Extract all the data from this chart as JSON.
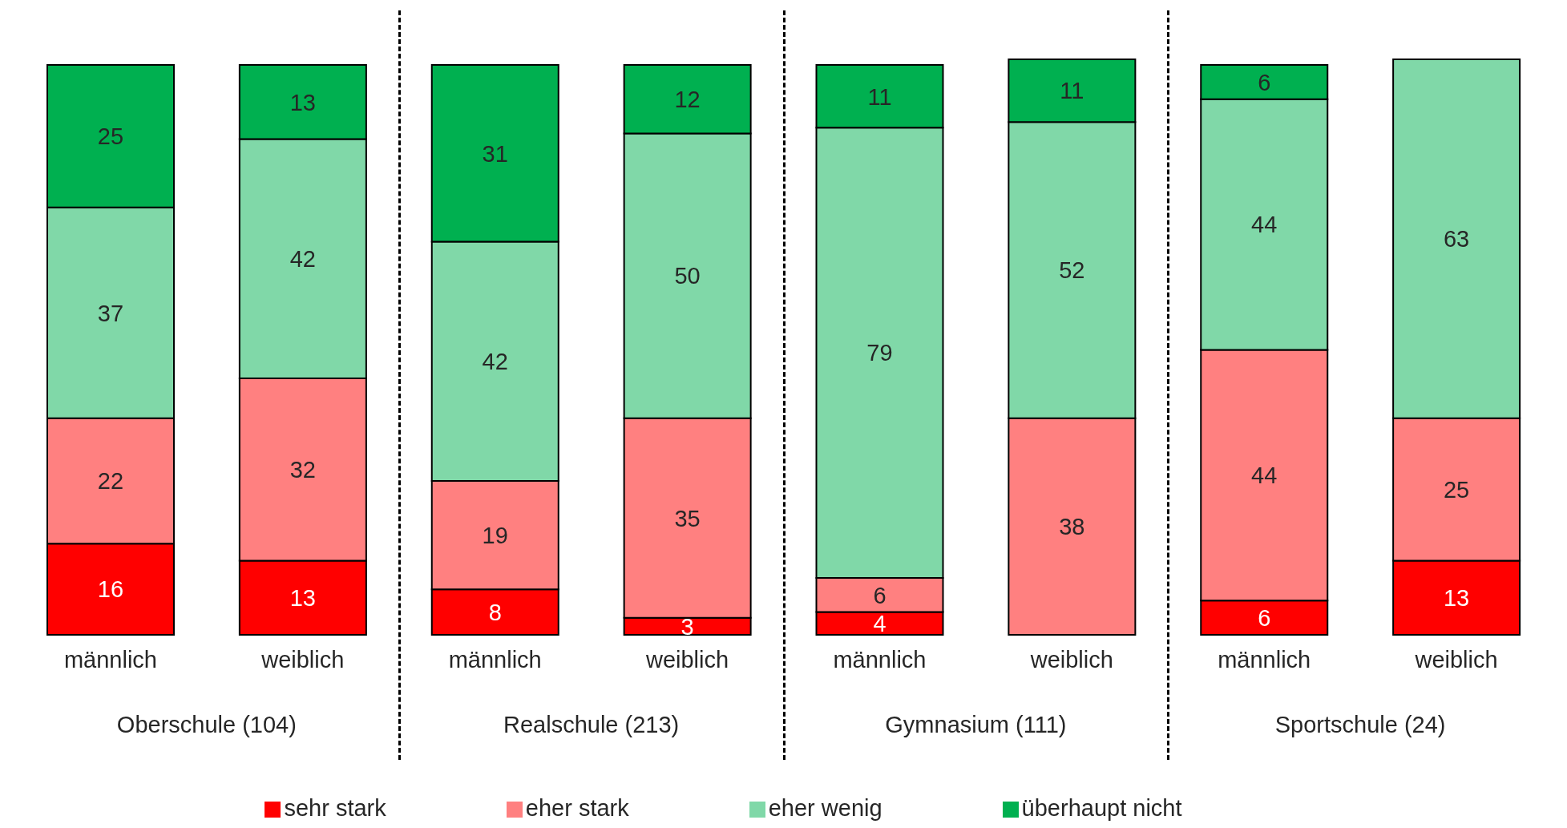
{
  "chart_data": {
    "type": "bar",
    "stacked": true,
    "data_labels": true,
    "legend": "bottom",
    "categories": [
      "männlich",
      "weiblich",
      "männlich",
      "weiblich",
      "männlich",
      "weiblich",
      "männlich",
      "weiblich"
    ],
    "annotations": [
      "Oberschule (104)",
      "Realschule (213)",
      "Gymnasium (111)",
      "Sportschule (24)"
    ],
    "series": [
      {
        "name": "sehr stark",
        "color": "#ff0000",
        "values": [
          16,
          13,
          8,
          3,
          4,
          null,
          6,
          13
        ]
      },
      {
        "name": "eher stark",
        "color": "#ff8080",
        "values": [
          22,
          32,
          19,
          35,
          6,
          38,
          44,
          25
        ]
      },
      {
        "name": "eher wenig",
        "color": "#80d8a8",
        "values": [
          37,
          42,
          42,
          50,
          79,
          52,
          44,
          63
        ]
      },
      {
        "name": "überhaupt nicht",
        "color": "#00b050",
        "values": [
          25,
          13,
          31,
          12,
          11,
          11,
          6,
          null
        ]
      }
    ]
  }
}
